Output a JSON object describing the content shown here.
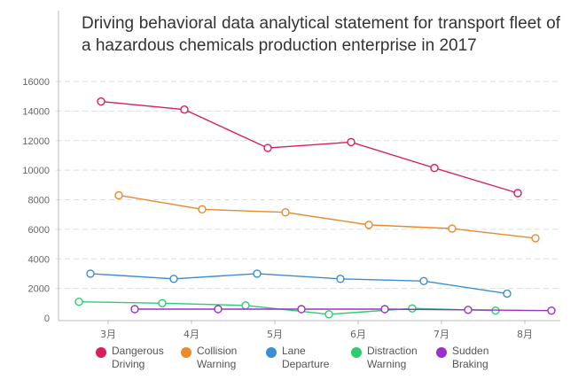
{
  "chart_data": {
    "type": "line",
    "title": "Driving behavioral data analytical statement for transport fleet of a hazardous chemicals production enterprise in 2017",
    "categories": [
      "3月",
      "4月",
      "5月",
      "6月",
      "7月",
      "8月"
    ],
    "ylim": [
      0,
      16000
    ],
    "yticks": [
      "0",
      "2000",
      "4000",
      "6000",
      "8000",
      "10000",
      "12000",
      "14000",
      "16000"
    ],
    "grid": true,
    "legend_position": "bottom",
    "series": [
      {
        "name": "Dangerous Driving",
        "label_lines": [
          "Dangerous",
          "Driving"
        ],
        "color": "#d81e5b",
        "values": [
          14650,
          14100,
          11500,
          11900,
          10150,
          8450
        ]
      },
      {
        "name": "Collision Warning",
        "label_lines": [
          "Collision",
          "Warning"
        ],
        "color": "#e98a2c",
        "values": [
          8300,
          7350,
          7150,
          6300,
          6050,
          5400
        ]
      },
      {
        "name": "Lane Departure",
        "label_lines": [
          "Lane",
          "Departure"
        ],
        "color": "#3b8ed0",
        "values": [
          3000,
          2650,
          3000,
          2650,
          2500,
          1650
        ]
      },
      {
        "name": "Distraction Warning",
        "label_lines": [
          "Distraction",
          "Warning"
        ],
        "color": "#2ecc71",
        "values": [
          1100,
          1000,
          850,
          250,
          650,
          500
        ]
      },
      {
        "name": "Sudden Braking",
        "label_lines": [
          "Sudden",
          "Braking"
        ],
        "color": "#9b30c8",
        "values": [
          600,
          600,
          600,
          600,
          550,
          500
        ]
      }
    ]
  }
}
